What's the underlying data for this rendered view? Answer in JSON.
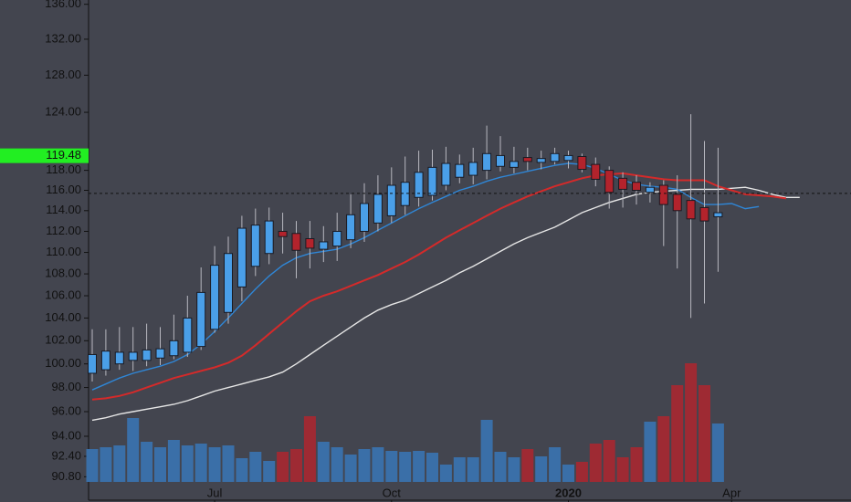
{
  "chart_data": {
    "type": "candlestick",
    "categories": [
      null,
      null,
      null,
      null,
      null,
      null,
      null,
      null,
      null,
      "Jul",
      null,
      null,
      null,
      null,
      null,
      null,
      null,
      null,
      null,
      null,
      null,
      null,
      "Oct",
      null,
      null,
      null,
      null,
      null,
      null,
      null,
      null,
      null,
      null,
      null,
      null,
      "2020",
      null,
      null,
      null,
      null,
      null,
      null,
      null,
      null,
      null,
      null,
      null,
      "Apr",
      null,
      null,
      null,
      null,
      null
    ],
    "open": [
      99.2,
      99.5,
      100,
      100.3,
      100.3,
      100.5,
      100.7,
      101,
      101.5,
      103,
      104.5,
      106.8,
      108.7,
      109.9,
      112,
      111.8,
      111.3,
      110.3,
      110.6,
      111.2,
      112,
      112.8,
      113.5,
      114.5,
      115.3,
      115.5,
      116.5,
      117.3,
      117.5,
      118,
      118.4,
      118.3,
      119.3,
      118.8,
      118.9,
      119,
      119.4,
      118.6,
      118,
      117.2,
      116.8,
      115.8,
      116.5,
      115.6,
      115,
      114.3,
      113.4,
      null,
      null,
      null,
      null,
      null,
      null
    ],
    "high": [
      103,
      103,
      103.2,
      103.2,
      103.5,
      103.2,
      104.3,
      106,
      108.6,
      110.6,
      111.5,
      113.5,
      114.2,
      114.3,
      113.8,
      113,
      113,
      112.5,
      113.8,
      115.6,
      116.7,
      117.5,
      118.3,
      119.4,
      120,
      120.1,
      120.4,
      119.6,
      120.3,
      122.6,
      121.5,
      120.4,
      120.3,
      120,
      120.3,
      120,
      119.7,
      119.3,
      118.4,
      117.8,
      117.5,
      116.8,
      117,
      117.5,
      123.8,
      121,
      120.3,
      null,
      null,
      null,
      null,
      null,
      null
    ],
    "low": [
      98.5,
      99,
      99.5,
      99.4,
      99.8,
      99.9,
      100.4,
      100.6,
      101.2,
      102.7,
      103.5,
      105.5,
      107.8,
      108.9,
      109.9,
      107.6,
      108.5,
      109.1,
      109.2,
      110.4,
      111,
      112,
      112.8,
      113.6,
      114.4,
      115,
      116,
      116.7,
      116.6,
      117.1,
      117.9,
      117.7,
      118,
      118.1,
      118.6,
      118.2,
      117.8,
      116.4,
      114.2,
      114.3,
      114.6,
      114.8,
      110.6,
      108.5,
      104,
      105.3,
      108.2,
      null,
      null,
      null,
      null,
      null,
      null
    ],
    "close": [
      100.8,
      101.1,
      101,
      101,
      101.2,
      101.3,
      102,
      104,
      106.3,
      108.8,
      109.9,
      112.3,
      112.6,
      113,
      111.5,
      110.2,
      110.4,
      111,
      112,
      113.6,
      114.7,
      115.6,
      116.5,
      116.8,
      117.8,
      118.3,
      118.7,
      118.6,
      118.8,
      119.7,
      119.5,
      118.9,
      118.9,
      119.2,
      119.7,
      119.5,
      118.1,
      117.1,
      115.8,
      116.1,
      116,
      116.3,
      114.6,
      114,
      113.2,
      113,
      113.8,
      null,
      null,
      null,
      null,
      null,
      null
    ],
    "volume": [
      36,
      38,
      40,
      70,
      44,
      38,
      46,
      40,
      42,
      38,
      40,
      26,
      33,
      23,
      33,
      36,
      72,
      44,
      38,
      30,
      36,
      38,
      34,
      33,
      34,
      32,
      19,
      27,
      27,
      68,
      33,
      27,
      36,
      28,
      38,
      19,
      22,
      42,
      46,
      27,
      38,
      66,
      72,
      106,
      130,
      106,
      64,
      null,
      null,
      null,
      null,
      null,
      null
    ],
    "up_color": "#4a9fe8",
    "down_color": "#b3232c",
    "ma": [
      {
        "color": "#e6e6e6",
        "values": [
          95.3,
          95.5,
          95.8,
          96,
          96.2,
          96.4,
          96.6,
          96.9,
          97.3,
          97.7,
          98,
          98.3,
          98.6,
          98.9,
          99.3,
          100,
          100.8,
          101.6,
          102.4,
          103.2,
          104,
          104.7,
          105.2,
          105.6,
          106.2,
          106.8,
          107.4,
          108.1,
          108.7,
          109.4,
          110.1,
          110.8,
          111.4,
          111.9,
          112.4,
          113.1,
          113.8,
          114.3,
          114.8,
          115.2,
          115.6,
          115.8,
          115.9,
          116,
          116.1,
          116.1,
          116.1,
          116.2,
          116.3,
          116,
          115.6,
          115.3,
          115.3
        ]
      },
      {
        "color": "#d42a2a",
        "values": [
          97,
          97.1,
          97.3,
          97.6,
          98,
          98.4,
          98.8,
          99.1,
          99.4,
          99.7,
          100.1,
          100.7,
          101.6,
          102.6,
          103.6,
          104.6,
          105.5,
          106,
          106.4,
          106.9,
          107.4,
          107.9,
          108.5,
          109.1,
          109.8,
          110.6,
          111.4,
          112.1,
          112.8,
          113.5,
          114.2,
          114.8,
          115.4,
          115.9,
          116.4,
          116.8,
          117.2,
          117.5,
          117.6,
          117.7,
          117.5,
          117.3,
          117.1,
          117,
          117,
          117,
          116.4,
          116,
          115.6,
          115.5,
          115.4,
          115.2,
          null
        ]
      },
      {
        "color": "#2f86d6",
        "values": [
          97.8,
          98.3,
          98.8,
          99.2,
          99.5,
          99.8,
          100.2,
          100.8,
          101.7,
          102.8,
          104,
          105.3,
          106.6,
          107.8,
          108.8,
          109.5,
          109.9,
          110.1,
          110.3,
          110.8,
          111.4,
          112.1,
          112.8,
          113.5,
          114.2,
          114.8,
          115.4,
          116,
          116.4,
          116.9,
          117.3,
          117.6,
          117.9,
          118.2,
          118.5,
          118.7,
          118.6,
          118.2,
          117.6,
          117,
          116.6,
          116.4,
          116.3,
          116.1,
          115.3,
          114.6,
          114.6,
          114.7,
          114.2,
          114.4,
          null,
          null,
          null
        ]
      }
    ],
    "log_scale": true,
    "ylim": [
      89,
      136.5
    ],
    "yticks": [
      {
        "value": 136,
        "label": "136.00"
      },
      {
        "value": 132,
        "label": "132.00"
      },
      {
        "value": 128,
        "label": "128.00"
      },
      {
        "value": 124,
        "label": "124.00"
      },
      {
        "value": 118,
        "label": "118.00"
      },
      {
        "value": 116,
        "label": "116.00"
      },
      {
        "value": 114,
        "label": "114.00"
      },
      {
        "value": 112,
        "label": "112.00"
      },
      {
        "value": 110,
        "label": "110.00"
      },
      {
        "value": 108,
        "label": "108.00"
      },
      {
        "value": 106,
        "label": "106.00"
      },
      {
        "value": 104,
        "label": "104.00"
      },
      {
        "value": 102,
        "label": "102.00"
      },
      {
        "value": 100,
        "label": "100.00"
      },
      {
        "value": 98,
        "label": "98.00"
      },
      {
        "value": 96,
        "label": "96.00"
      },
      {
        "value": 94,
        "label": "94.00"
      },
      {
        "value": 92.4,
        "label": "92.40"
      },
      {
        "value": 90.8,
        "label": "90.80"
      }
    ],
    "vlim": [
      0,
      140
    ],
    "price_line": 115.7,
    "last_price": 119.48
  }
}
